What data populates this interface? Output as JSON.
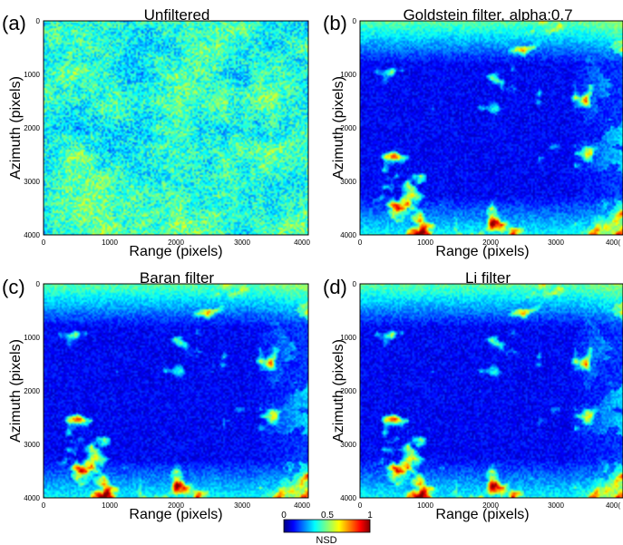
{
  "panels": [
    {
      "letter": "(a)",
      "title": "Unfiltered",
      "xlabel": "Range (pixels)",
      "ylabel": "Azimuth (pixels)",
      "xticks": [
        "0",
        "1000",
        "2000",
        "3000",
        "4000"
      ],
      "yticks": [
        "0",
        "1000",
        "2000",
        "3000",
        "4000"
      ],
      "mean_nsd": 0.42,
      "variability": 0.14
    },
    {
      "letter": "(b)",
      "title": "Goldstein filter, alpha:0.7",
      "xlabel": "Range (pixels)",
      "ylabel": "Azimuth (pixels)",
      "xticks": [
        "0",
        "1000",
        "2000",
        "3000",
        "400("
      ],
      "yticks": [
        "0",
        "1000",
        "2000",
        "3000",
        "4000"
      ],
      "mean_nsd": 0.12,
      "variability": 0.2
    },
    {
      "letter": "(c)",
      "title": "Baran filter",
      "xlabel": "Range (pixels)",
      "ylabel": "Azimuth (pixels)",
      "xticks": [
        "0",
        "1000",
        "2000",
        "3000",
        "4000"
      ],
      "yticks": [
        "0",
        "1000",
        "2000",
        "3000",
        "4000"
      ],
      "mean_nsd": 0.12,
      "variability": 0.2
    },
    {
      "letter": "(d)",
      "title": "Li filter",
      "xlabel": "Range (pixels)",
      "ylabel": "Azimuth (pixels)",
      "xticks": [
        "0",
        "1000",
        "2000",
        "3000",
        "400("
      ],
      "yticks": [
        "0",
        "1000",
        "2000",
        "3000",
        "4000"
      ],
      "mean_nsd": 0.12,
      "variability": 0.2
    }
  ],
  "colorbar": {
    "ticks": [
      "0",
      "0.5",
      "1"
    ],
    "label": "NSD",
    "range": [
      0,
      1
    ],
    "colormap": "jet"
  },
  "colors": {
    "background": "#ffffff",
    "jet_low": "#00007f",
    "jet_mid": "#7fff7f",
    "jet_high": "#7f0000"
  }
}
